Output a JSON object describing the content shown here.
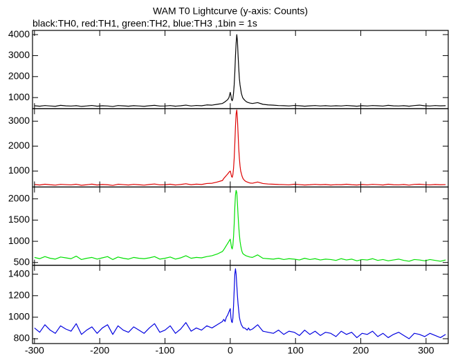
{
  "chart_data": [
    {
      "type": "line",
      "title": "WAM T0 Lightcurve (y-axis: Counts)",
      "subtitle": "black:TH0, red:TH1, green:TH2, blue:TH3 ,1bin = 1s",
      "color": "#000000",
      "x": [
        -300,
        -292,
        -284,
        -276,
        -268,
        -260,
        -252,
        -244,
        -236,
        -228,
        -220,
        -212,
        -204,
        -196,
        -188,
        -180,
        -172,
        -164,
        -156,
        -148,
        -140,
        -132,
        -124,
        -116,
        -108,
        -100,
        -92,
        -84,
        -76,
        -68,
        -60,
        -52,
        -44,
        -36,
        -28,
        -20,
        -12,
        -10,
        -8,
        -6,
        -4,
        -2,
        0,
        1,
        2,
        3,
        4,
        5,
        6,
        7,
        8,
        9,
        10,
        11,
        12,
        13,
        14,
        15,
        16,
        17,
        18,
        19,
        20,
        22,
        24,
        26,
        28,
        30,
        34,
        42,
        50,
        58,
        66,
        74,
        82,
        90,
        98,
        106,
        114,
        122,
        130,
        138,
        146,
        154,
        162,
        170,
        178,
        186,
        194,
        202,
        210,
        218,
        226,
        234,
        242,
        250,
        258,
        266,
        274,
        282,
        290,
        298,
        306,
        314,
        322,
        330
      ],
      "values": [
        610,
        590,
        620,
        600,
        585,
        630,
        605,
        595,
        615,
        580,
        600,
        625,
        590,
        610,
        600,
        575,
        620,
        605,
        590,
        615,
        600,
        585,
        610,
        630,
        595,
        600,
        620,
        590,
        610,
        640,
        600,
        625,
        610,
        650,
        640,
        680,
        720,
        760,
        800,
        850,
        900,
        1000,
        1250,
        1100,
        900,
        850,
        950,
        1200,
        1600,
        2200,
        3000,
        3600,
        4000,
        3700,
        3000,
        2400,
        1900,
        1600,
        1400,
        1200,
        1100,
        1000,
        950,
        880,
        820,
        780,
        760,
        740,
        720,
        760,
        680,
        650,
        640,
        620,
        615,
        600,
        625,
        610,
        590,
        605,
        620,
        600,
        615,
        595,
        610,
        600,
        625,
        605,
        590,
        615,
        600,
        620,
        610,
        595,
        630,
        605,
        600,
        615,
        590,
        620,
        640,
        610,
        600,
        620,
        605,
        615
      ],
      "xlim": [
        -303,
        334
      ],
      "ylim": [
        470,
        4200
      ],
      "yticks": [
        1000,
        2000,
        3000,
        4000
      ]
    },
    {
      "type": "line",
      "color": "#dd0000",
      "x": [
        -300,
        -292,
        -284,
        -276,
        -268,
        -260,
        -252,
        -244,
        -236,
        -228,
        -220,
        -212,
        -204,
        -196,
        -188,
        -180,
        -172,
        -164,
        -156,
        -148,
        -140,
        -132,
        -124,
        -116,
        -108,
        -100,
        -92,
        -84,
        -76,
        -68,
        -60,
        -52,
        -44,
        -36,
        -28,
        -20,
        -12,
        -10,
        -8,
        -6,
        -4,
        -2,
        0,
        1,
        2,
        3,
        4,
        5,
        6,
        7,
        8,
        9,
        10,
        11,
        12,
        13,
        14,
        15,
        16,
        17,
        18,
        19,
        20,
        22,
        24,
        26,
        28,
        30,
        34,
        42,
        50,
        58,
        66,
        74,
        82,
        90,
        98,
        106,
        114,
        122,
        130,
        138,
        146,
        154,
        162,
        170,
        178,
        186,
        194,
        202,
        210,
        218,
        226,
        234,
        242,
        250,
        258,
        266,
        274,
        282,
        290,
        298,
        306,
        314,
        322,
        330
      ],
      "values": [
        460,
        440,
        470,
        450,
        435,
        465,
        455,
        445,
        470,
        430,
        450,
        475,
        440,
        460,
        450,
        425,
        470,
        455,
        440,
        465,
        450,
        435,
        460,
        480,
        445,
        450,
        470,
        440,
        460,
        490,
        450,
        475,
        460,
        500,
        510,
        560,
        620,
        700,
        760,
        820,
        880,
        950,
        1000,
        900,
        780,
        750,
        850,
        1100,
        1500,
        2100,
        2800,
        3300,
        3450,
        3100,
        2500,
        1900,
        1500,
        1200,
        1000,
        900,
        800,
        730,
        680,
        620,
        580,
        560,
        540,
        520,
        510,
        560,
        500,
        480,
        470,
        460,
        455,
        445,
        470,
        455,
        440,
        450,
        465,
        450,
        460,
        440,
        455,
        450,
        470,
        450,
        440,
        460,
        445,
        465,
        455,
        440,
        470,
        450,
        445,
        460,
        435,
        465,
        470,
        455,
        445,
        460,
        450,
        455
      ],
      "xlim": [
        -303,
        334
      ],
      "ylim": [
        360,
        3500
      ],
      "yticks": [
        1000,
        2000,
        3000
      ]
    },
    {
      "type": "line",
      "color": "#00e000",
      "x": [
        -300,
        -292,
        -284,
        -276,
        -268,
        -260,
        -252,
        -244,
        -236,
        -228,
        -220,
        -212,
        -204,
        -196,
        -188,
        -180,
        -172,
        -164,
        -156,
        -148,
        -140,
        -132,
        -124,
        -116,
        -108,
        -100,
        -92,
        -84,
        -76,
        -68,
        -60,
        -52,
        -44,
        -36,
        -28,
        -20,
        -12,
        -10,
        -8,
        -6,
        -4,
        -2,
        0,
        1,
        2,
        3,
        4,
        5,
        6,
        7,
        8,
        9,
        10,
        11,
        12,
        13,
        14,
        15,
        16,
        17,
        18,
        19,
        20,
        22,
        24,
        26,
        28,
        30,
        34,
        42,
        50,
        58,
        66,
        74,
        82,
        90,
        98,
        106,
        114,
        122,
        130,
        138,
        146,
        154,
        162,
        170,
        178,
        186,
        194,
        202,
        210,
        218,
        226,
        234,
        242,
        250,
        258,
        266,
        274,
        282,
        290,
        298,
        306,
        314,
        322,
        330
      ],
      "values": [
        620,
        590,
        640,
        600,
        580,
        630,
        610,
        590,
        650,
        570,
        600,
        620,
        580,
        610,
        640,
        570,
        630,
        600,
        580,
        620,
        600,
        590,
        610,
        640,
        580,
        600,
        630,
        580,
        610,
        660,
        600,
        620,
        610,
        640,
        660,
        700,
        760,
        800,
        850,
        900,
        950,
        1000,
        1050,
        950,
        850,
        820,
        900,
        1100,
        1400,
        1800,
        2100,
        2200,
        2150,
        1900,
        1600,
        1350,
        1150,
        1000,
        900,
        820,
        760,
        720,
        700,
        680,
        660,
        650,
        640,
        630,
        620,
        680,
        600,
        590,
        580,
        600,
        570,
        590,
        580,
        560,
        600,
        570,
        590,
        560,
        580,
        570,
        550,
        590,
        560,
        580,
        540,
        570,
        560,
        590,
        550,
        570,
        540,
        560,
        580,
        550,
        530,
        570,
        560,
        540,
        570,
        550,
        530,
        560
      ],
      "xlim": [
        -303,
        334
      ],
      "ylim": [
        435,
        2280
      ],
      "yticks": [
        500,
        1000,
        1500,
        2000
      ]
    },
    {
      "type": "line",
      "color": "#0000e0",
      "x": [
        -300,
        -292,
        -284,
        -276,
        -268,
        -260,
        -252,
        -244,
        -236,
        -228,
        -220,
        -212,
        -204,
        -196,
        -188,
        -180,
        -172,
        -164,
        -156,
        -148,
        -140,
        -132,
        -124,
        -116,
        -108,
        -100,
        -92,
        -84,
        -76,
        -68,
        -60,
        -52,
        -44,
        -36,
        -28,
        -20,
        -12,
        -10,
        -8,
        -6,
        -4,
        -2,
        0,
        1,
        2,
        3,
        4,
        5,
        6,
        7,
        8,
        9,
        10,
        11,
        12,
        13,
        14,
        15,
        16,
        17,
        18,
        19,
        20,
        22,
        24,
        26,
        28,
        30,
        34,
        42,
        50,
        58,
        66,
        74,
        82,
        90,
        98,
        106,
        114,
        122,
        130,
        138,
        146,
        154,
        162,
        170,
        178,
        186,
        194,
        202,
        210,
        218,
        226,
        234,
        242,
        250,
        258,
        266,
        274,
        282,
        290,
        298,
        306,
        314,
        322,
        330
      ],
      "values": [
        900,
        860,
        930,
        880,
        850,
        920,
        890,
        870,
        940,
        840,
        880,
        910,
        850,
        900,
        930,
        840,
        920,
        880,
        860,
        910,
        880,
        850,
        900,
        940,
        860,
        880,
        920,
        850,
        890,
        950,
        870,
        900,
        880,
        920,
        900,
        930,
        960,
        980,
        960,
        1000,
        1020,
        1050,
        1080,
        1000,
        960,
        950,
        990,
        1100,
        1250,
        1400,
        1450,
        1400,
        1300,
        1200,
        1120,
        1060,
        1000,
        970,
        950,
        930,
        920,
        910,
        900,
        900,
        890,
        880,
        900,
        880,
        890,
        930,
        870,
        860,
        850,
        880,
        840,
        870,
        860,
        830,
        880,
        840,
        870,
        830,
        860,
        850,
        820,
        870,
        840,
        860,
        810,
        850,
        840,
        870,
        820,
        850,
        810,
        840,
        860,
        830,
        800,
        850,
        840,
        820,
        850,
        830,
        810,
        840
      ],
      "xlim": [
        -303,
        334
      ],
      "ylim": [
        755,
        1483
      ],
      "yticks": [
        800,
        1000,
        1200,
        1400
      ],
      "xticks": [
        -300,
        -200,
        -100,
        0,
        100,
        200,
        300
      ]
    }
  ]
}
